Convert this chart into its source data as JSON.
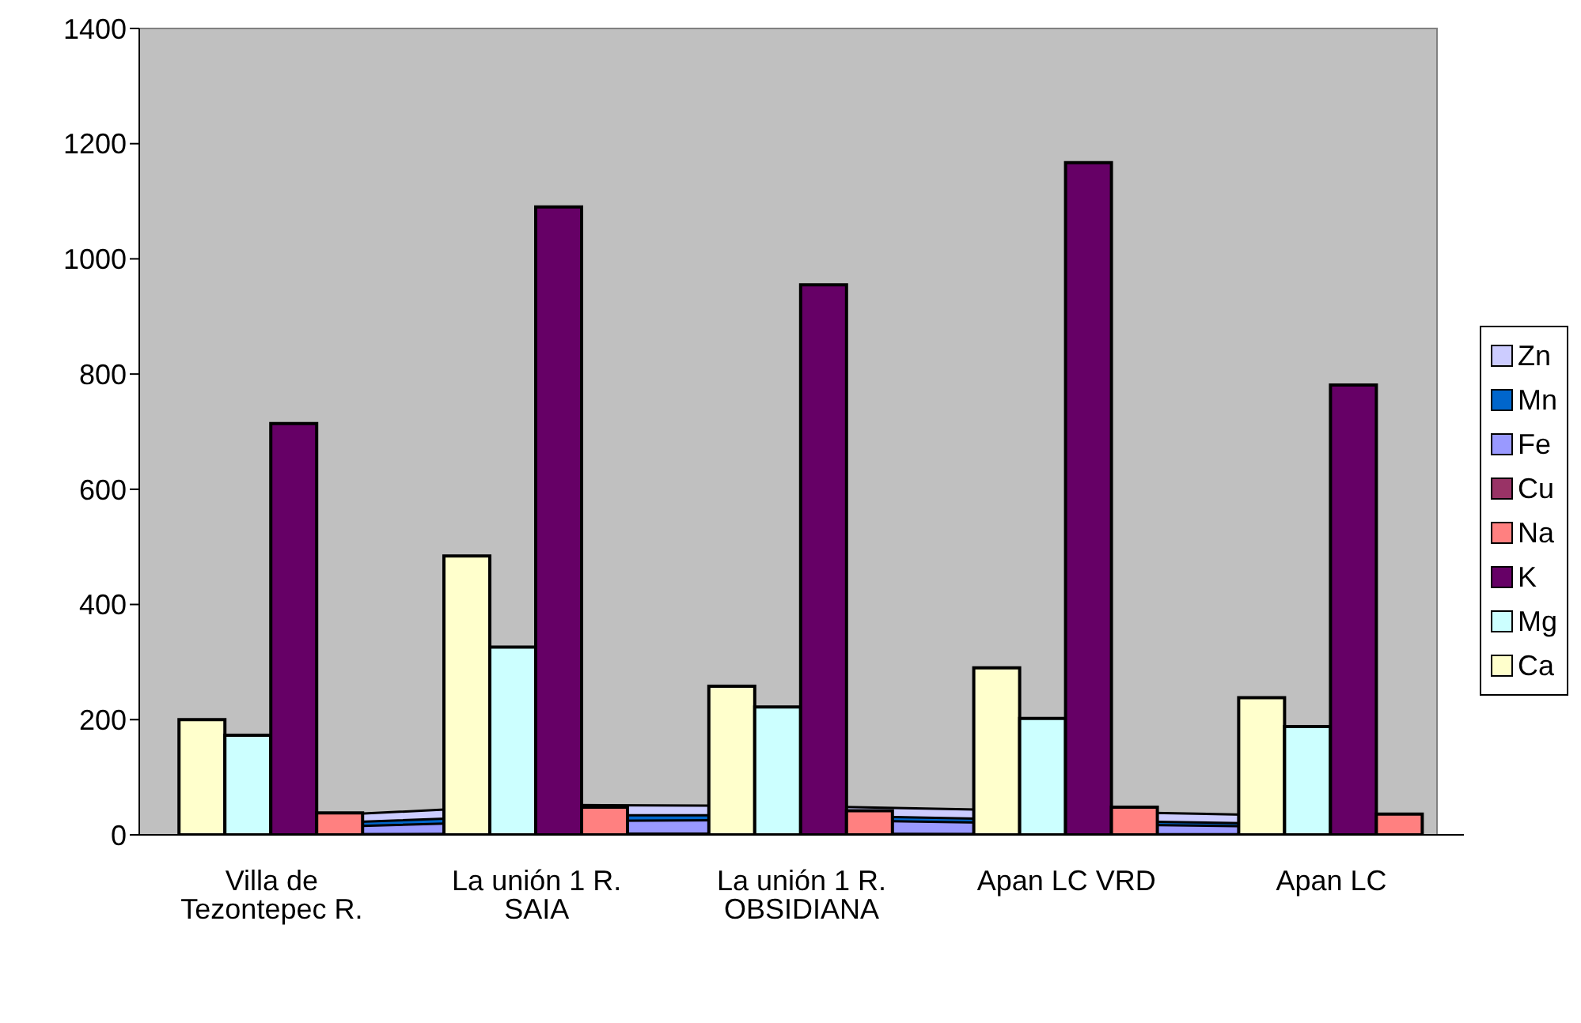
{
  "chart_data": {
    "type": "bar",
    "categories": [
      "Villa de Tezontepec R.",
      "La unión 1 R. SAIA",
      "La unión 1 R. OBSIDIANA",
      "Apan LC VRD",
      "Apan LC"
    ],
    "series": [
      {
        "name": "Ca",
        "color": "#ffffcc",
        "values": [
          200,
          484,
          258,
          290,
          238
        ]
      },
      {
        "name": "Mg",
        "color": "#ccffff",
        "values": [
          173,
          326,
          222,
          202,
          188
        ]
      },
      {
        "name": "K",
        "color": "#660066",
        "values": [
          714,
          1090,
          955,
          1167,
          781
        ]
      },
      {
        "name": "Na",
        "color": "#ff8080",
        "values": [
          38,
          48,
          42,
          48,
          36
        ]
      },
      {
        "name": "Cu",
        "type": "area",
        "color": "#993366",
        "values": [
          1,
          2,
          2,
          1,
          1
        ]
      },
      {
        "name": "Fe",
        "type": "area",
        "color": "#9999ff",
        "values": [
          11,
          24,
          26,
          19,
          13
        ]
      },
      {
        "name": "Mn",
        "type": "area",
        "color": "#0066cc",
        "values": [
          17,
          34,
          34,
          25,
          18
        ]
      },
      {
        "name": "Zn",
        "type": "area",
        "color": "#ccccff",
        "values": [
          29,
          52,
          50,
          41,
          32
        ]
      }
    ],
    "ylim": [
      0,
      1400
    ],
    "yticks": [
      0,
      200,
      400,
      600,
      800,
      1000,
      1200,
      1400
    ],
    "grid": false,
    "legend": "right"
  }
}
